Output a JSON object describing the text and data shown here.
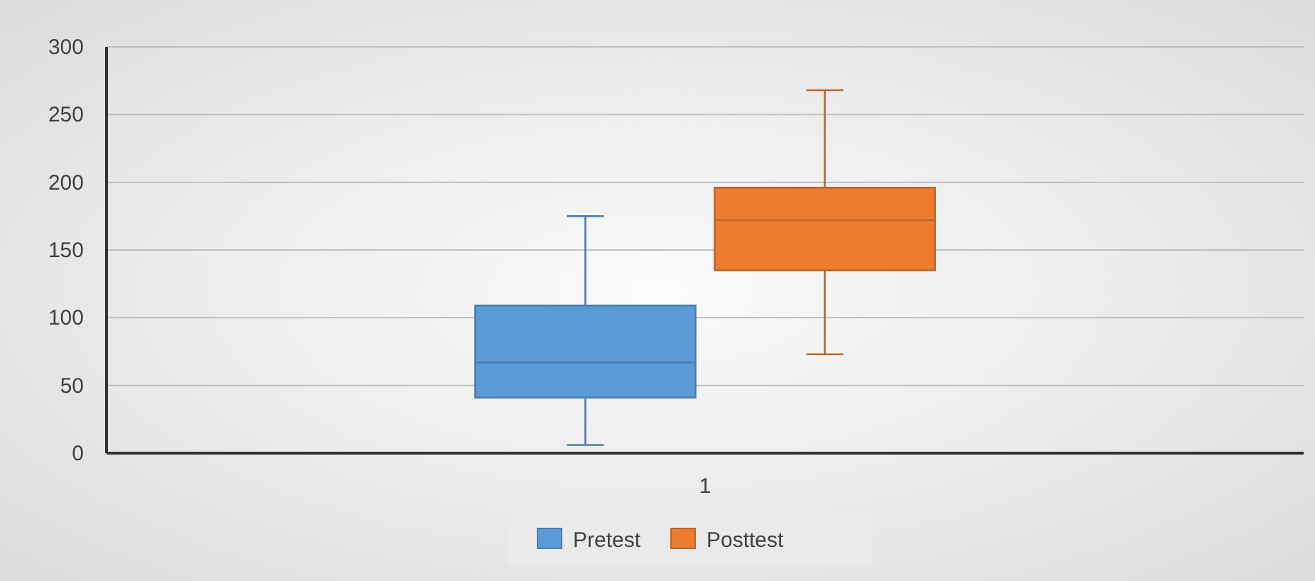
{
  "chart_data": {
    "type": "box",
    "categories": [
      "1"
    ],
    "series": [
      {
        "name": "Pretest",
        "color": "#5b9bd5",
        "boxes": [
          {
            "low": 6,
            "q1": 41,
            "median": 67,
            "q3": 109,
            "high": 175
          }
        ]
      },
      {
        "name": "Posttest",
        "color": "#ed7d31",
        "boxes": [
          {
            "low": 73,
            "q1": 135,
            "median": 172,
            "q3": 196,
            "high": 268
          }
        ]
      }
    ],
    "ylim": [
      0,
      300
    ],
    "yticks": [
      0,
      50,
      100,
      150,
      200,
      250,
      300
    ],
    "grid": "y",
    "legend": "bottom"
  }
}
